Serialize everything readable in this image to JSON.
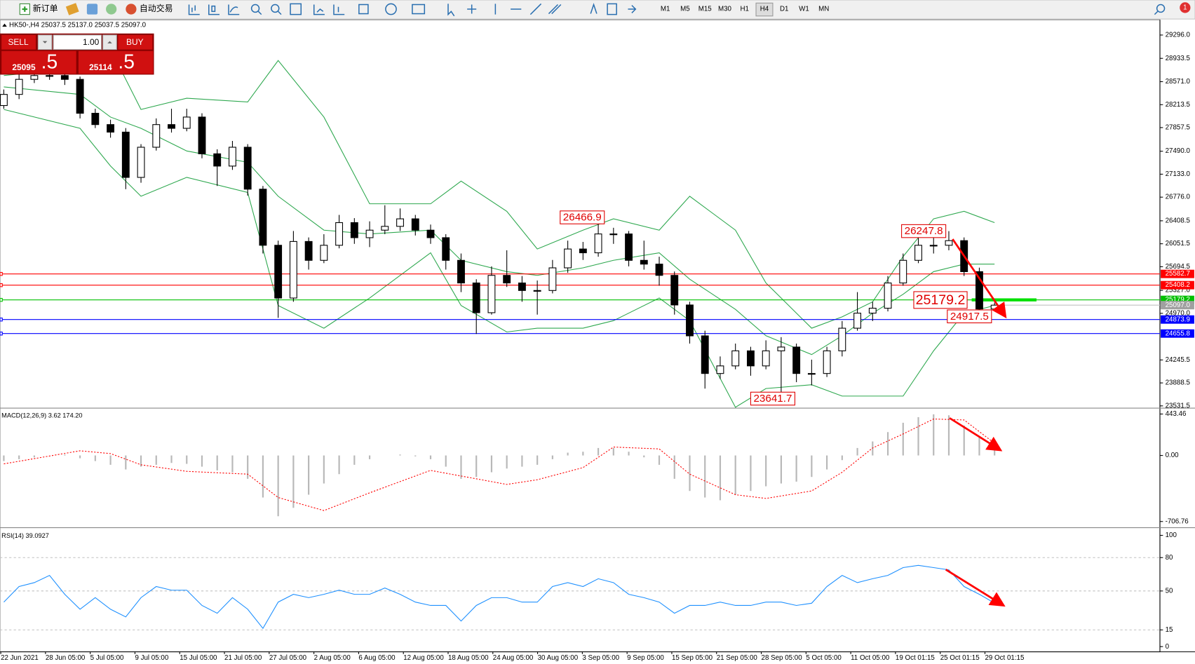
{
  "toolbar": {
    "new_order": "新订单",
    "auto_trading": "自动交易",
    "timeframes": [
      "M1",
      "M5",
      "M15",
      "M30",
      "H1",
      "H4",
      "D1",
      "W1",
      "MN"
    ],
    "active_timeframe": "H4",
    "notifications": "1"
  },
  "trade_panel": {
    "sell": "SELL",
    "buy": "BUY",
    "volume": "1.00",
    "bid": "25095",
    "bid_big": ".5",
    "ask": "25114",
    "ask_big": ".5"
  },
  "chart": {
    "symbol_info": "HK50-,H4  25037.5 25137.0 25037.5 25097.0",
    "ylim": [
      23508,
      29521
    ],
    "yticks": [
      {
        "value": 29296,
        "label": "29296.0"
      },
      28933.5,
      {
        "value": 28571,
        "label": "28571.0"
      },
      28213.5,
      27857.5,
      {
        "value": 27490,
        "label": "27490.0"
      },
      {
        "value": 27133,
        "label": "27133.0"
      },
      {
        "value": 26776,
        "label": "26776.0"
      },
      26408.5,
      26051.5,
      25694.5,
      {
        "value": 25327,
        "label": "25327.0"
      },
      {
        "value": 24970,
        "label": "24970.0"
      },
      24245.5,
      23888.5,
      23531.5
    ],
    "candles": [
      [
        28200,
        28450,
        28150,
        28373
      ],
      [
        28373,
        28700,
        28300,
        28607
      ],
      [
        28607,
        28750,
        28550,
        28666
      ],
      [
        28666,
        28760,
        28600,
        28666
      ],
      [
        28666,
        28740,
        28520,
        28607
      ],
      [
        28607,
        28650,
        28000,
        28080
      ],
      [
        28080,
        28150,
        27850,
        27904
      ],
      [
        27904,
        27980,
        27700,
        27787
      ],
      [
        27787,
        27850,
        26900,
        27083
      ],
      [
        27083,
        27600,
        27000,
        27552
      ],
      [
        27552,
        28000,
        27500,
        27904
      ],
      [
        27904,
        28150,
        27780,
        27846
      ],
      [
        27846,
        28150,
        27800,
        28021
      ],
      [
        28021,
        28080,
        27380,
        27450
      ],
      [
        27450,
        27520,
        26950,
        27259
      ],
      [
        27259,
        27650,
        27200,
        27552
      ],
      [
        27552,
        27600,
        26800,
        26900
      ],
      [
        26900,
        26950,
        25900,
        26028
      ],
      [
        26028,
        26100,
        24900,
        25208
      ],
      [
        25208,
        26250,
        25150,
        26087
      ],
      [
        26087,
        26150,
        25650,
        25794
      ],
      [
        25794,
        26200,
        25750,
        26028
      ],
      [
        26028,
        26500,
        25980,
        26380
      ],
      [
        26380,
        26450,
        26050,
        26146
      ],
      [
        26146,
        26400,
        26000,
        26263
      ],
      [
        26263,
        26650,
        26200,
        26322
      ],
      [
        26322,
        26600,
        26250,
        26439
      ],
      [
        26439,
        26500,
        26180,
        26263
      ],
      [
        26263,
        26350,
        26050,
        26146
      ],
      [
        26146,
        26200,
        25650,
        25794
      ],
      [
        25794,
        25900,
        25300,
        25442
      ],
      [
        25442,
        25500,
        24650,
        24980
      ],
      [
        24980,
        25700,
        24950,
        25560
      ],
      [
        25560,
        25950,
        25380,
        25442
      ],
      [
        25442,
        25550,
        25150,
        25325
      ],
      [
        25325,
        25480,
        24950,
        25325
      ],
      [
        25325,
        25800,
        25280,
        25677
      ],
      [
        25677,
        26100,
        25600,
        25970
      ],
      [
        25970,
        26080,
        25800,
        25911
      ],
      [
        25911,
        26466.9,
        25850,
        26204
      ],
      [
        26204,
        26300,
        26050,
        26204
      ],
      [
        26204,
        26250,
        25700,
        25794
      ],
      [
        25794,
        26100,
        25650,
        25735
      ],
      [
        25735,
        25850,
        25400,
        25560
      ],
      [
        25560,
        25620,
        24950,
        25100
      ],
      [
        25100,
        25150,
        24500,
        24620
      ],
      [
        24620,
        24700,
        23800,
        24035
      ],
      [
        24035,
        24300,
        23950,
        24153
      ],
      [
        24153,
        24500,
        24100,
        24387
      ],
      [
        24387,
        24450,
        24000,
        24153
      ],
      [
        24153,
        24550,
        24100,
        24387
      ],
      [
        24387,
        24600,
        23641.7,
        24446
      ],
      [
        24446,
        24500,
        23900,
        24035
      ],
      [
        24035,
        24250,
        23850,
        24035
      ],
      [
        24035,
        24450,
        23980,
        24387
      ],
      [
        24387,
        24850,
        24300,
        24739
      ],
      [
        24739,
        25300,
        24700,
        24973
      ],
      [
        24973,
        25150,
        24850,
        25050
      ],
      [
        25050,
        25550,
        25000,
        25442
      ],
      [
        25442,
        25900,
        25400,
        25794
      ],
      [
        25794,
        26150,
        25750,
        26028
      ],
      [
        26028,
        26150,
        25900,
        26028
      ],
      [
        26028,
        26247.8,
        25950,
        26100
      ],
      [
        26100,
        26150,
        25550,
        25618
      ],
      [
        25618,
        25680,
        24917.5,
        25037.5
      ],
      [
        25037.5,
        25137,
        25037.5,
        25097
      ]
    ],
    "bands": {
      "color": "#2ea84f",
      "x": [
        0,
        5,
        7,
        9,
        12,
        16,
        18,
        21,
        24,
        28,
        30,
        33,
        35,
        38,
        40,
        43,
        45,
        48,
        50,
        53,
        55,
        57,
        59,
        61,
        63,
        65
      ],
      "upper": [
        28666,
        28783,
        29077,
        28139,
        28314,
        28256,
        28900,
        28021,
        26673,
        26673,
        27025,
        26556,
        25970,
        26263,
        26439,
        26263,
        26790,
        26263,
        25442,
        24739,
        24915,
        25149,
        25853,
        26439,
        26556,
        26380
      ],
      "middle": [
        28490,
        28373,
        28021,
        27846,
        27494,
        27318,
        26790,
        26263,
        26204,
        26263,
        25794,
        25618,
        25560,
        25677,
        25794,
        25911,
        25501,
        25032,
        24622,
        24329,
        24622,
        24973,
        25266,
        25618,
        25735,
        25735
      ],
      "lower": [
        28139,
        27846,
        27260,
        26790,
        27084,
        26849,
        25091,
        24739,
        25208,
        25911,
        25091,
        24680,
        24739,
        24739,
        24856,
        25208,
        24856,
        23510,
        23801,
        23860,
        23684,
        23684,
        23684,
        24387,
        24973,
        25091
      ]
    },
    "levels": [
      {
        "value": 25582.7,
        "color": "#ff0000"
      },
      {
        "value": 25408.2,
        "color": "#ff0000"
      },
      {
        "value": 25179.2,
        "color": "#00c000"
      },
      {
        "value": 24873.9,
        "color": "#0000ff"
      },
      {
        "value": 24655.8,
        "color": "#0000ff"
      }
    ],
    "last_price": {
      "value": 25097,
      "label": "25097.0"
    },
    "annotations": [
      26466.9,
      26247.8,
      25179.2,
      24917.5,
      23641.7
    ],
    "x_labels": [
      "22 Jun 2021",
      "28 Jun 05:00",
      "5 Jul 05:00",
      "9 Jul 05:00",
      "15 Jul 05:00",
      "21 Jul 05:00",
      "27 Jul 05:00",
      "2 Aug 05:00",
      "6 Aug 05:00",
      "12 Aug 05:00",
      "18 Aug 05:00",
      "24 Aug 05:00",
      "30 Aug 05:00",
      "3 Sep 05:00",
      "9 Sep 05:00",
      "15 Sep 05:00",
      "21 Sep 05:00",
      "28 Sep 05:00",
      "5 Oct 05:00",
      "11 Oct 05:00",
      "19 Oct 01:15",
      "25 Oct 01:15",
      "29 Oct 01:15"
    ],
    "macd": {
      "label": "MACD(12,26,9) 3.62 174.20",
      "ylim": [
        -765,
        490
      ],
      "yticks": [
        443.46,
        {
          "value": 0,
          "label": "0.00"
        },
        -706.76
      ],
      "histogram_color": "#b8b8b8",
      "histogram": [
        -60,
        -40,
        -20,
        0,
        10,
        -30,
        -60,
        -100,
        -150,
        -120,
        -100,
        -80,
        -90,
        -120,
        -160,
        -180,
        -250,
        -450,
        -650,
        -560,
        -420,
        -300,
        -200,
        -100,
        -40,
        0,
        10,
        -10,
        -40,
        -120,
        -250,
        -230,
        -180,
        -140,
        -120,
        -100,
        -40,
        30,
        40,
        80,
        80,
        40,
        -20,
        -100,
        -250,
        -380,
        -450,
        -480,
        -420,
        -380,
        -330,
        -300,
        -280,
        -230,
        -150,
        -50,
        80,
        150,
        250,
        350,
        410,
        440,
        430,
        320,
        200,
        80
      ],
      "signal": {
        "color": "#ff0000",
        "x": [
          0,
          5,
          7,
          9,
          12,
          16,
          18,
          21,
          24,
          28,
          30,
          33,
          35,
          38,
          40,
          43,
          45,
          48,
          50,
          53,
          55,
          57,
          59,
          61,
          63,
          65
        ],
        "values": [
          -90,
          50,
          20,
          -100,
          -170,
          -200,
          -450,
          -590,
          -400,
          -160,
          -220,
          -310,
          -260,
          -130,
          90,
          70,
          -200,
          -420,
          -460,
          -380,
          -180,
          80,
          230,
          390,
          380,
          130
        ]
      }
    },
    "rsi": {
      "label": "RSI(14) 39.0927",
      "ylim": [
        -4,
        105.5
      ],
      "yticks": [
        100,
        80,
        50,
        15,
        0
      ],
      "levels": [
        80,
        50,
        15
      ],
      "color": "#1e90ff",
      "values": [
        40,
        54,
        57.5,
        64,
        47,
        33.6,
        44,
        33.6,
        26.7,
        44,
        54,
        50.7,
        50.7,
        37,
        30,
        44,
        33.6,
        16.4,
        40,
        47,
        44,
        47,
        50.7,
        47,
        47,
        52.7,
        47,
        40,
        37,
        37,
        23,
        37,
        44,
        44,
        40,
        40,
        54,
        57.5,
        54,
        61,
        57.5,
        47,
        44,
        40,
        30,
        37,
        37,
        40,
        37,
        37,
        40,
        40,
        37,
        39,
        54,
        64,
        57.5,
        61,
        64,
        71,
        73,
        71,
        69,
        54,
        47,
        39.0927
      ]
    }
  }
}
